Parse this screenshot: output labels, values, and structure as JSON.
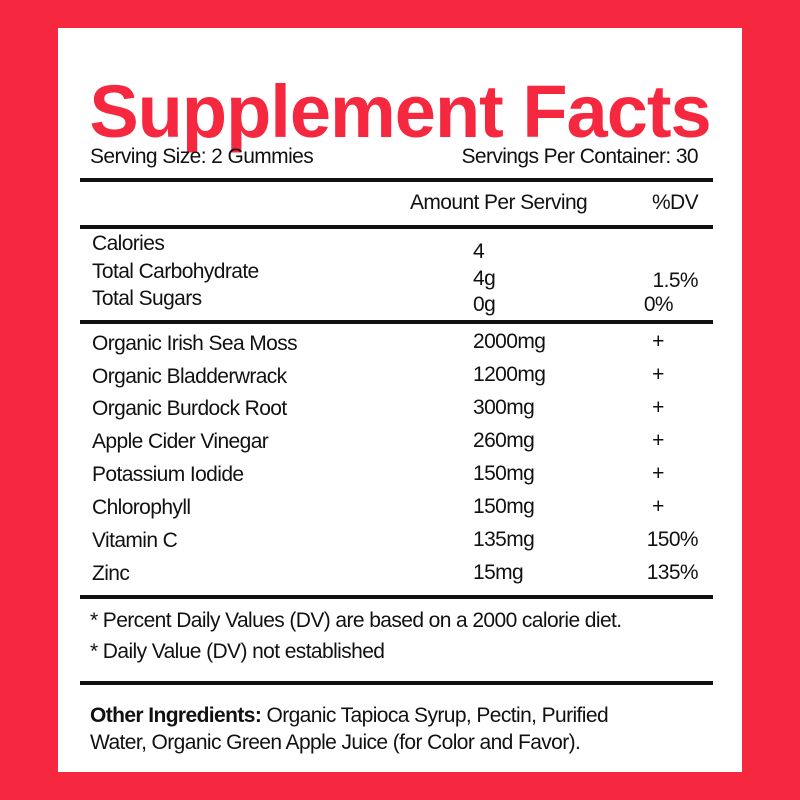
{
  "title": "Supplement Facts",
  "serving_size": "Serving Size: 2 Gummies",
  "servings_per_container": "Servings Per Container: 30",
  "header": {
    "amount": "Amount Per Serving",
    "dv": "%DV"
  },
  "basics": [
    {
      "name": "Calories",
      "amount": "4",
      "dv": ""
    },
    {
      "name": "Total Carbohydrate",
      "amount": "4g",
      "dv": "1.5%"
    },
    {
      "name": "Total Sugars",
      "amount": "0g",
      "dv": "0%"
    }
  ],
  "ingredients": [
    {
      "name": "Organic Irish Sea Moss",
      "amount": "2000mg",
      "dv": "+"
    },
    {
      "name": "Organic Bladderwrack",
      "amount": "1200mg",
      "dv": "+"
    },
    {
      "name": "Organic Burdock Root",
      "amount": "300mg",
      "dv": "+"
    },
    {
      "name": "Apple Cider Vinegar",
      "amount": "260mg",
      "dv": "+"
    },
    {
      "name": "Potassium Iodide",
      "amount": "150mg",
      "dv": "+"
    },
    {
      "name": "Chlorophyll",
      "amount": "150mg",
      "dv": "+"
    },
    {
      "name": "Vitamin C",
      "amount": "135mg",
      "dv": "150%"
    },
    {
      "name": "Zinc",
      "amount": "15mg",
      "dv": "135%"
    }
  ],
  "footnotes": [
    "* Percent Daily Values (DV) are based on a 2000 calorie diet.",
    "* Daily Value (DV) not established"
  ],
  "other_ingredients": {
    "label": "Other Ingredients:",
    "line1": " Organic Tapioca Syrup, Pectin, Purified",
    "line2": "Water, Organic Green Apple Juice (for Color and Favor)."
  },
  "colors": {
    "brand_red": "#f5283f"
  }
}
